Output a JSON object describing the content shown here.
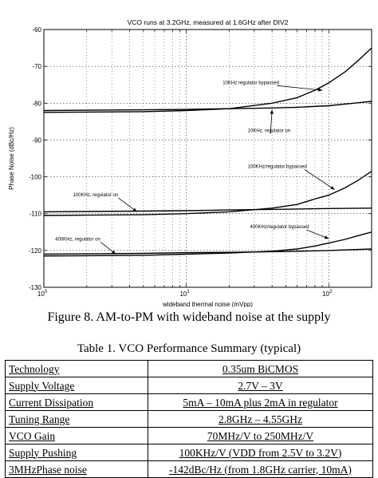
{
  "chart_data": {
    "type": "line",
    "title": "VCO runs at 3.2GHz, measured at 1.6GHz after DIV2",
    "xlabel": "wideband thermal noise (mVpp)",
    "ylabel": "Phase Noise (dBc/Hz)",
    "xscale": "log",
    "xlim": [
      1,
      200
    ],
    "ylim": [
      -130,
      -60
    ],
    "x_tick_labels": [
      "10^0",
      "10^1",
      "10^2"
    ],
    "y_tick_labels": [
      "-60",
      "-70",
      "-80",
      "-90",
      "-100",
      "-110",
      "-120",
      "-130"
    ],
    "grid": true,
    "series": [
      {
        "name": "10KHz regulator bypassed",
        "x": [
          1,
          5,
          10,
          20,
          40,
          60,
          80,
          100,
          130,
          160,
          200
        ],
        "y": [
          -82.5,
          -82.3,
          -82.0,
          -81.5,
          -80.0,
          -78.5,
          -76.5,
          -74.5,
          -71.5,
          -68.5,
          -65.0
        ]
      },
      {
        "name": "10KHz, regulator on",
        "x": [
          1,
          5,
          10,
          20,
          40,
          60,
          100,
          150,
          200
        ],
        "y": [
          -82.0,
          -81.8,
          -81.7,
          -81.5,
          -81.3,
          -81.1,
          -80.7,
          -80.0,
          -79.5
        ]
      },
      {
        "name": "100KHz/regulator bypassed",
        "x": [
          1,
          5,
          10,
          20,
          40,
          60,
          80,
          100,
          130,
          160,
          200
        ],
        "y": [
          -110.5,
          -110.3,
          -110.0,
          -109.5,
          -108.5,
          -107.5,
          -106.0,
          -105.0,
          -103.0,
          -101.0,
          -98.5
        ]
      },
      {
        "name": "100KHz, regulator on",
        "x": [
          1,
          5,
          10,
          20,
          50,
          100,
          200
        ],
        "y": [
          -109.5,
          -109.3,
          -109.2,
          -109.0,
          -108.8,
          -108.6,
          -108.5
        ]
      },
      {
        "name": "400KHz/regulator bypassed",
        "x": [
          1,
          5,
          10,
          20,
          40,
          60,
          80,
          100,
          130,
          160,
          200
        ],
        "y": [
          -121.5,
          -121.3,
          -121.0,
          -120.7,
          -120.2,
          -119.6,
          -118.8,
          -118.0,
          -117.0,
          -116.0,
          -115.0
        ]
      },
      {
        "name": "400KHz, regulator on",
        "x": [
          1,
          5,
          10,
          20,
          50,
          100,
          200
        ],
        "y": [
          -121.0,
          -120.8,
          -120.6,
          -120.5,
          -120.3,
          -120.0,
          -119.6
        ]
      }
    ],
    "annotations": [
      {
        "text": "10KHz regulator bypassed",
        "x": 18,
        "y": -74.8,
        "arrow_to": [
          90,
          -76.5
        ]
      },
      {
        "text": "10KHz, regulator on",
        "x": 27,
        "y": -87.8,
        "arrow_to": [
          40,
          -81.8
        ]
      },
      {
        "text": "100KHz/regulator bypassed",
        "x": 27,
        "y": -97.6,
        "arrow_to": [
          110,
          -103.5
        ]
      },
      {
        "text": "100KHz, regulator on",
        "x": 1.6,
        "y": -105.3,
        "arrow_to": [
          4.5,
          -109.5
        ]
      },
      {
        "text": "400KHz, regulator on",
        "x": 1.2,
        "y": -117.3,
        "arrow_to": [
          3.2,
          -121.0
        ]
      },
      {
        "text": "400KHz/regulator bypassed",
        "x": 28,
        "y": -114.0,
        "arrow_to": [
          100,
          -116.8
        ]
      }
    ]
  },
  "figure_caption": "Figure 8. AM-to-PM with wideband noise at the supply",
  "table": {
    "caption": "Table 1. VCO Performance Summary (typical)",
    "rows": [
      {
        "param": "Technology",
        "value": "0.35um BiCMOS"
      },
      {
        "param": "Supply Voltage",
        "value": "2.7V – 3V"
      },
      {
        "param": "Current Dissipation",
        "value": "5mA – 10mA plus 2mA in regulator"
      },
      {
        "param": "Tuning Range",
        "value": "2.8GHz – 4.55GHz"
      },
      {
        "param": "VCO Gain",
        "value": "70MHz/V to 250MHz/V"
      },
      {
        "param": "Supply Pushing",
        "value": "100KHz/V (VDD from 2.5V to 3.2V)"
      },
      {
        "param": "3MHzPhase noise",
        "value": "-142dBc/Hz  (from 1.8GHz carrier, 10mA)"
      }
    ]
  }
}
